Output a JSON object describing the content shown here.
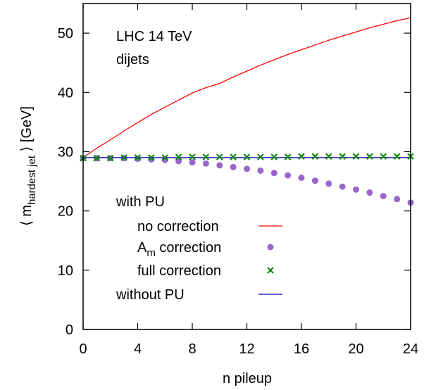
{
  "chart_data": {
    "type": "line",
    "annotation": {
      "line1": "LHC 14 TeV",
      "line2": "dijets"
    },
    "xlabel": "n pileup",
    "ylabel": {
      "prefix": "⟨ m",
      "subscript": "hardest jet",
      "suffix": " ⟩  [GeV]"
    },
    "xlim": [
      0,
      24
    ],
    "ylim": [
      0,
      55
    ],
    "xticks": [
      0,
      4,
      8,
      12,
      16,
      20,
      24
    ],
    "yticks": [
      0,
      10,
      20,
      30,
      40,
      50
    ],
    "grid": false,
    "legend": {
      "position": "bottom-left",
      "title": "with PU",
      "items": [
        {
          "key": "no_correction",
          "label": "no correction",
          "label_sub": "",
          "label_suffix": ""
        },
        {
          "key": "am_correction",
          "label": "A",
          "label_sub": "m",
          "label_suffix": " correction"
        },
        {
          "key": "full_correction",
          "label": "full correction",
          "label_sub": "",
          "label_suffix": ""
        },
        {
          "key": "without_pu",
          "label": "without PU",
          "label_sub": "",
          "label_suffix": ""
        }
      ]
    },
    "series": [
      {
        "key": "no_correction",
        "style": "line",
        "color": "#ff0000",
        "x": [
          0,
          1,
          2,
          3,
          4,
          5,
          6,
          7,
          8,
          9,
          10,
          11,
          12,
          13,
          14,
          15,
          16,
          17,
          18,
          19,
          20,
          21,
          22,
          23,
          24
        ],
        "values": [
          29.0,
          30.6,
          32.0,
          33.5,
          34.9,
          36.3,
          37.5,
          38.7,
          39.9,
          40.8,
          41.5,
          42.6,
          43.6,
          44.6,
          45.5,
          46.4,
          47.2,
          48.0,
          48.8,
          49.5,
          50.2,
          50.9,
          51.5,
          52.1,
          52.6
        ]
      },
      {
        "key": "am_correction",
        "style": "dots",
        "color": "#9966cc",
        "x": [
          0,
          1,
          2,
          3,
          4,
          5,
          6,
          7,
          8,
          9,
          10,
          11,
          12,
          13,
          14,
          15,
          16,
          17,
          18,
          19,
          20,
          21,
          22,
          23,
          24
        ],
        "values": [
          28.9,
          28.9,
          28.9,
          28.9,
          28.8,
          28.7,
          28.6,
          28.4,
          28.2,
          28.0,
          27.7,
          27.4,
          27.1,
          26.8,
          26.4,
          26.0,
          25.6,
          25.1,
          24.6,
          24.1,
          23.6,
          23.1,
          22.5,
          22.0,
          21.4
        ]
      },
      {
        "key": "full_correction",
        "style": "crosses",
        "color": "#118811",
        "x": [
          0,
          1,
          2,
          3,
          4,
          5,
          6,
          7,
          8,
          9,
          10,
          11,
          12,
          13,
          14,
          15,
          16,
          17,
          18,
          19,
          20,
          21,
          22,
          23,
          24
        ],
        "values": [
          28.9,
          28.9,
          28.9,
          29.0,
          29.0,
          29.0,
          29.0,
          29.1,
          29.1,
          29.1,
          29.1,
          29.1,
          29.1,
          29.1,
          29.1,
          29.1,
          29.2,
          29.2,
          29.2,
          29.2,
          29.2,
          29.2,
          29.2,
          29.2,
          29.2
        ]
      },
      {
        "key": "without_pu",
        "style": "line",
        "color": "#0000aa",
        "x": [
          0,
          24
        ],
        "values": [
          29.0,
          29.0
        ]
      }
    ]
  }
}
